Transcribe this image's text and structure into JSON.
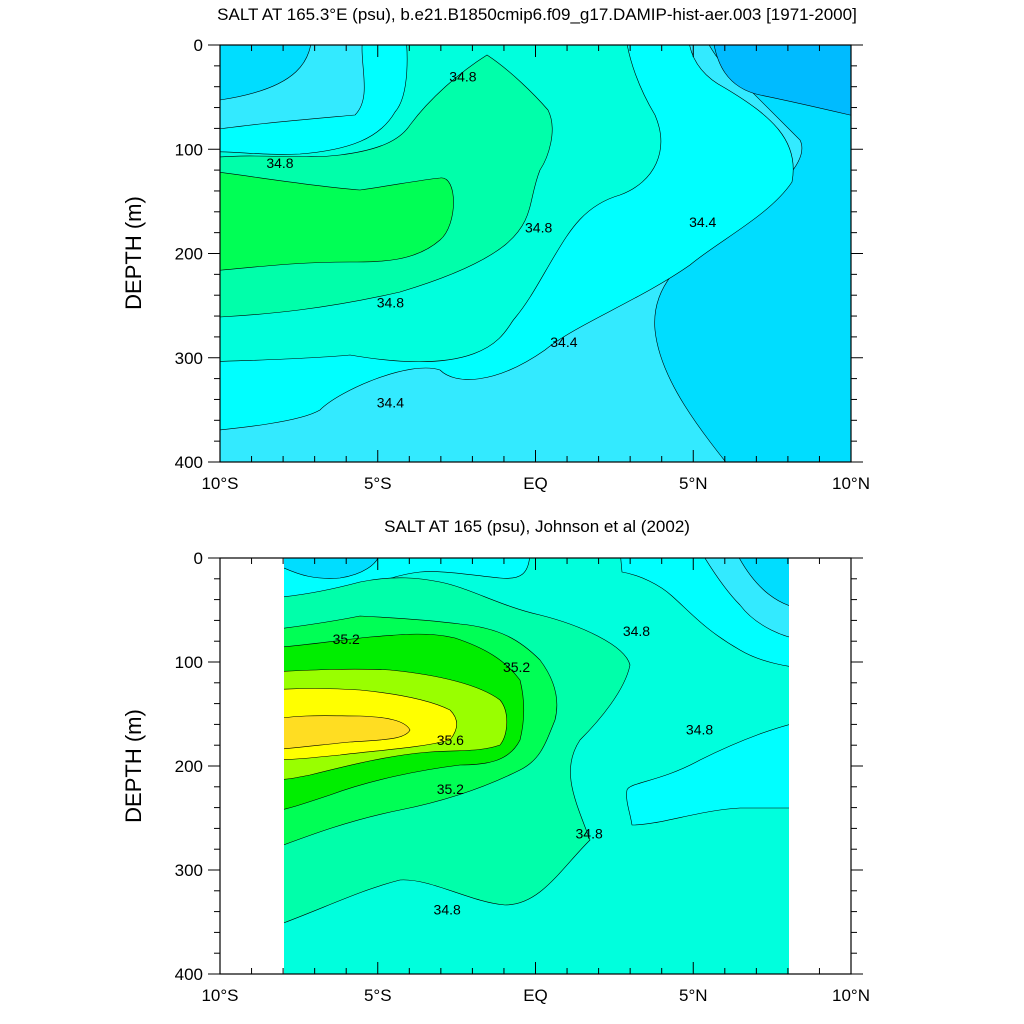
{
  "chart_data": [
    {
      "type": "contour",
      "title": "SALT AT 165.3°E (psu), b.e21.B1850cmip6.f09_g17.DAMIP-hist-aer.003 [1971-2000]",
      "ylabel": "DEPTH (m)",
      "x_ticks": [
        "10°S",
        "5°S",
        "EQ",
        "5°N",
        "10°N"
      ],
      "y_ticks": [
        "0",
        "100",
        "200",
        "300",
        "400"
      ],
      "xlim": [
        -10,
        10
      ],
      "ylim": [
        400,
        0
      ],
      "contour_labels": [
        {
          "text": "34.8",
          "x": -2.3,
          "y": 30
        },
        {
          "text": "34.8",
          "x": -8.1,
          "y": 113
        },
        {
          "text": "34.8",
          "x": 0.1,
          "y": 175
        },
        {
          "text": "34.4",
          "x": 5.3,
          "y": 170
        },
        {
          "text": "34.8",
          "x": -4.6,
          "y": 247
        },
        {
          "text": "34.4",
          "x": 0.9,
          "y": 285
        },
        {
          "text": "34.4",
          "x": -4.6,
          "y": 343
        }
      ],
      "fill_levels": [
        {
          "name": "fresh",
          "color": "#00bbff"
        },
        {
          "name": "34.4",
          "color": "#33eaff"
        },
        {
          "name": "34.6",
          "color": "#00ffff"
        },
        {
          "name": "34.8",
          "color": "#00ffdd"
        },
        {
          "name": "35.0",
          "color": "#00ffaa"
        },
        {
          "name": "35.2",
          "color": "#00ff55"
        }
      ]
    },
    {
      "type": "contour",
      "title": "SALT AT 165 (psu), Johnson et al (2002)",
      "ylabel": "DEPTH (m)",
      "x_ticks": [
        "10°S",
        "5°S",
        "EQ",
        "5°N",
        "10°N"
      ],
      "y_ticks": [
        "0",
        "100",
        "200",
        "300",
        "400"
      ],
      "xlim": [
        -10,
        10
      ],
      "ylim": [
        400,
        0
      ],
      "data_xlim": [
        -8,
        8
      ],
      "contour_labels": [
        {
          "text": "35.2",
          "x": -6.0,
          "y": 78
        },
        {
          "text": "35.2",
          "x": -0.6,
          "y": 105
        },
        {
          "text": "34.8",
          "x": 3.2,
          "y": 70
        },
        {
          "text": "34.8",
          "x": 5.2,
          "y": 165
        },
        {
          "text": "35.6",
          "x": -2.7,
          "y": 175
        },
        {
          "text": "35.2",
          "x": -2.7,
          "y": 222
        },
        {
          "text": "34.8",
          "x": 1.7,
          "y": 265
        },
        {
          "text": "34.8",
          "x": -2.8,
          "y": 338
        }
      ],
      "fill_levels": [
        {
          "name": "34.4",
          "color": "#00ddff"
        },
        {
          "name": "34.6",
          "color": "#00ffff"
        },
        {
          "name": "34.8",
          "color": "#00ffdd"
        },
        {
          "name": "35.0",
          "color": "#00ffaa"
        },
        {
          "name": "35.2",
          "color": "#00ff55"
        },
        {
          "name": "35.4",
          "color": "#00ee00"
        },
        {
          "name": "35.6",
          "color": "#99ff00"
        },
        {
          "name": "35.8",
          "color": "#ffff00"
        },
        {
          "name": "36.0",
          "color": "#ffdd22"
        }
      ]
    }
  ]
}
